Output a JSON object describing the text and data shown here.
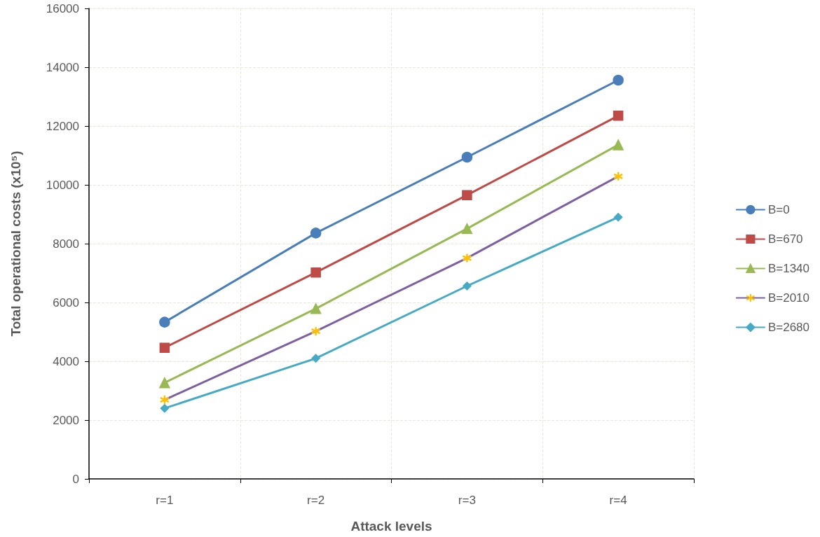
{
  "chart_data": {
    "type": "line",
    "xlabel": "Attack levels",
    "ylabel": "Total operational costs (x10⁵)",
    "categories": [
      "r=1",
      "r=2",
      "r=3",
      "r=4"
    ],
    "series": [
      {
        "name": "B=0",
        "color": "#4a7ebb",
        "marker": "circle",
        "values": [
          5330,
          8360,
          10940,
          13560
        ]
      },
      {
        "name": "B=670",
        "color": "#be4b48",
        "marker": "square",
        "values": [
          4460,
          7020,
          9650,
          12350
        ]
      },
      {
        "name": "B=1340",
        "color": "#98b954",
        "marker": "triangle",
        "values": [
          3270,
          5790,
          8510,
          11360
        ]
      },
      {
        "name": "B=2010",
        "color": "#7d60a0",
        "marker": "cross",
        "values": [
          2690,
          5020,
          7510,
          10290
        ]
      },
      {
        "name": "B=2680",
        "color": "#46aac5",
        "marker": "diamond",
        "values": [
          2400,
          4100,
          6560,
          8900
        ]
      }
    ],
    "ylim": [
      0,
      16000
    ],
    "yticks": [
      0,
      2000,
      4000,
      6000,
      8000,
      10000,
      12000,
      14000,
      16000
    ],
    "grid": true,
    "legend": "right",
    "line_style": "solid"
  }
}
